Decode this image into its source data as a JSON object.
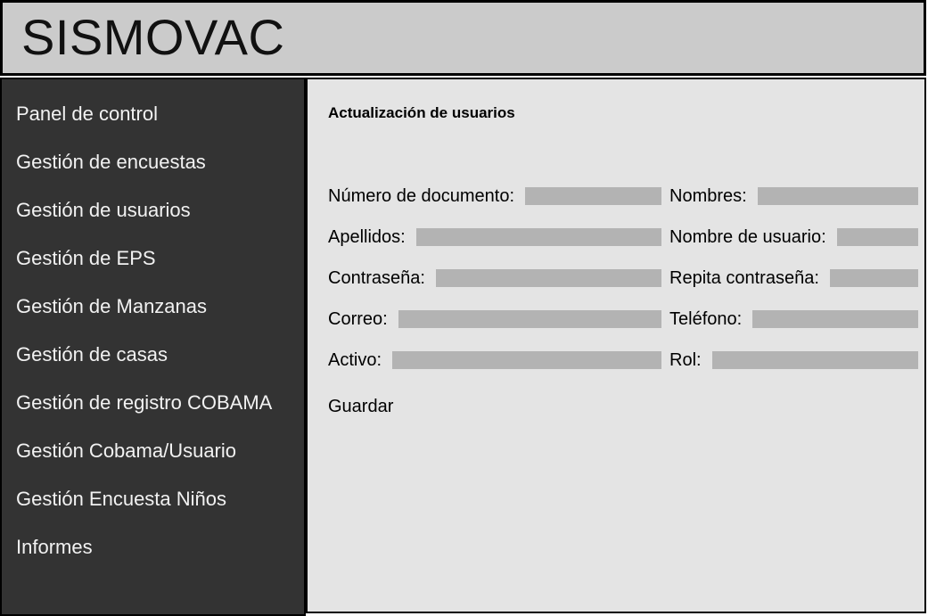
{
  "header": {
    "title": "SISMOVAC"
  },
  "sidebar": {
    "items": [
      "Panel de control",
      "Gestión de encuestas",
      "Gestión de usuarios",
      "Gestión de EPS",
      "Gestión de Manzanas",
      "Gestión de casas",
      "Gestión de registro COBAMA",
      "Gestión Cobama/Usuario",
      "Gestión Encuesta Niños",
      "Informes"
    ]
  },
  "main": {
    "title": "Actualización de usuarios",
    "form": {
      "rows": [
        {
          "left": {
            "label": "Número de documento:",
            "value": ""
          },
          "right": {
            "label": "Nombres:",
            "value": ""
          }
        },
        {
          "left": {
            "label": "Apellidos:",
            "value": ""
          },
          "right": {
            "label": "Nombre de usuario:",
            "value": ""
          }
        },
        {
          "left": {
            "label": "Contraseña:",
            "value": ""
          },
          "right": {
            "label": "Repita contraseña:",
            "value": ""
          }
        },
        {
          "left": {
            "label": "Correo:",
            "value": ""
          },
          "right": {
            "label": "Teléfono:",
            "value": ""
          }
        },
        {
          "left": {
            "label": "Activo:",
            "value": ""
          },
          "right": {
            "label": "Rol:",
            "value": ""
          }
        }
      ],
      "save_label": "Guardar"
    }
  },
  "colors": {
    "header_bg": "#cbcbcb",
    "sidebar_bg": "#333333",
    "sidebar_text": "#f2f2f2",
    "main_bg": "#e4e4e4",
    "input_bg": "#b3b3b3",
    "border": "#000000"
  }
}
